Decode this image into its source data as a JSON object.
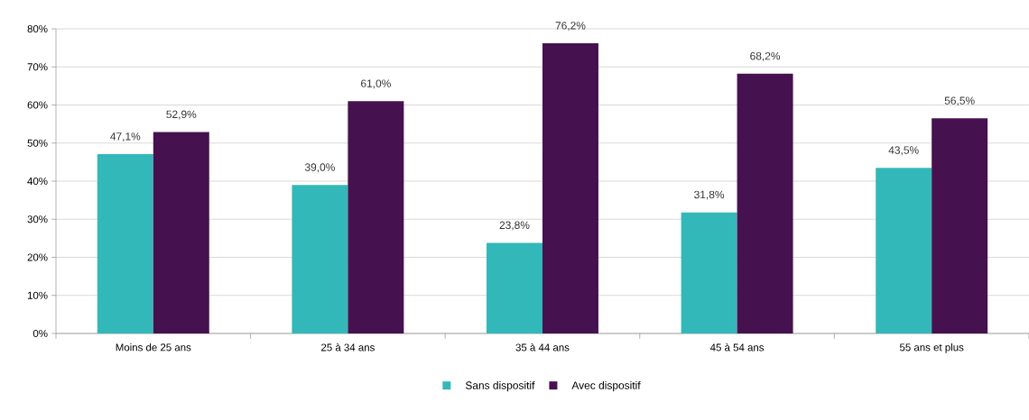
{
  "chart_data": {
    "type": "bar",
    "categories": [
      "Moins de 25 ans",
      "25 à 34 ans",
      "35 à 44 ans",
      "45 à 54 ans",
      "55 ans et plus"
    ],
    "series": [
      {
        "name": "Sans dispositif",
        "color": "#33b8b9",
        "values": [
          47.1,
          39.0,
          23.8,
          31.8,
          43.5
        ],
        "value_labels": [
          "47,1%",
          "39,0%",
          "23,8%",
          "31,8%",
          "43,5%"
        ]
      },
      {
        "name": "Avec dispositif",
        "color": "#46114f",
        "values": [
          52.9,
          61.0,
          76.2,
          68.2,
          56.5
        ],
        "value_labels": [
          "52,9%",
          "61,0%",
          "76,2%",
          "68,2%",
          "56,5%"
        ]
      }
    ],
    "ylim": [
      0,
      80
    ],
    "yticks": [
      {
        "value": 0,
        "label": "0%"
      },
      {
        "value": 10,
        "label": "10%"
      },
      {
        "value": 20,
        "label": "20%"
      },
      {
        "value": 30,
        "label": "30%"
      },
      {
        "value": 40,
        "label": "40%"
      },
      {
        "value": 50,
        "label": "50%"
      },
      {
        "value": 60,
        "label": "60%"
      },
      {
        "value": 70,
        "label": "70%"
      },
      {
        "value": 80,
        "label": "80%"
      }
    ],
    "grid": "y",
    "legend": "bottom"
  }
}
